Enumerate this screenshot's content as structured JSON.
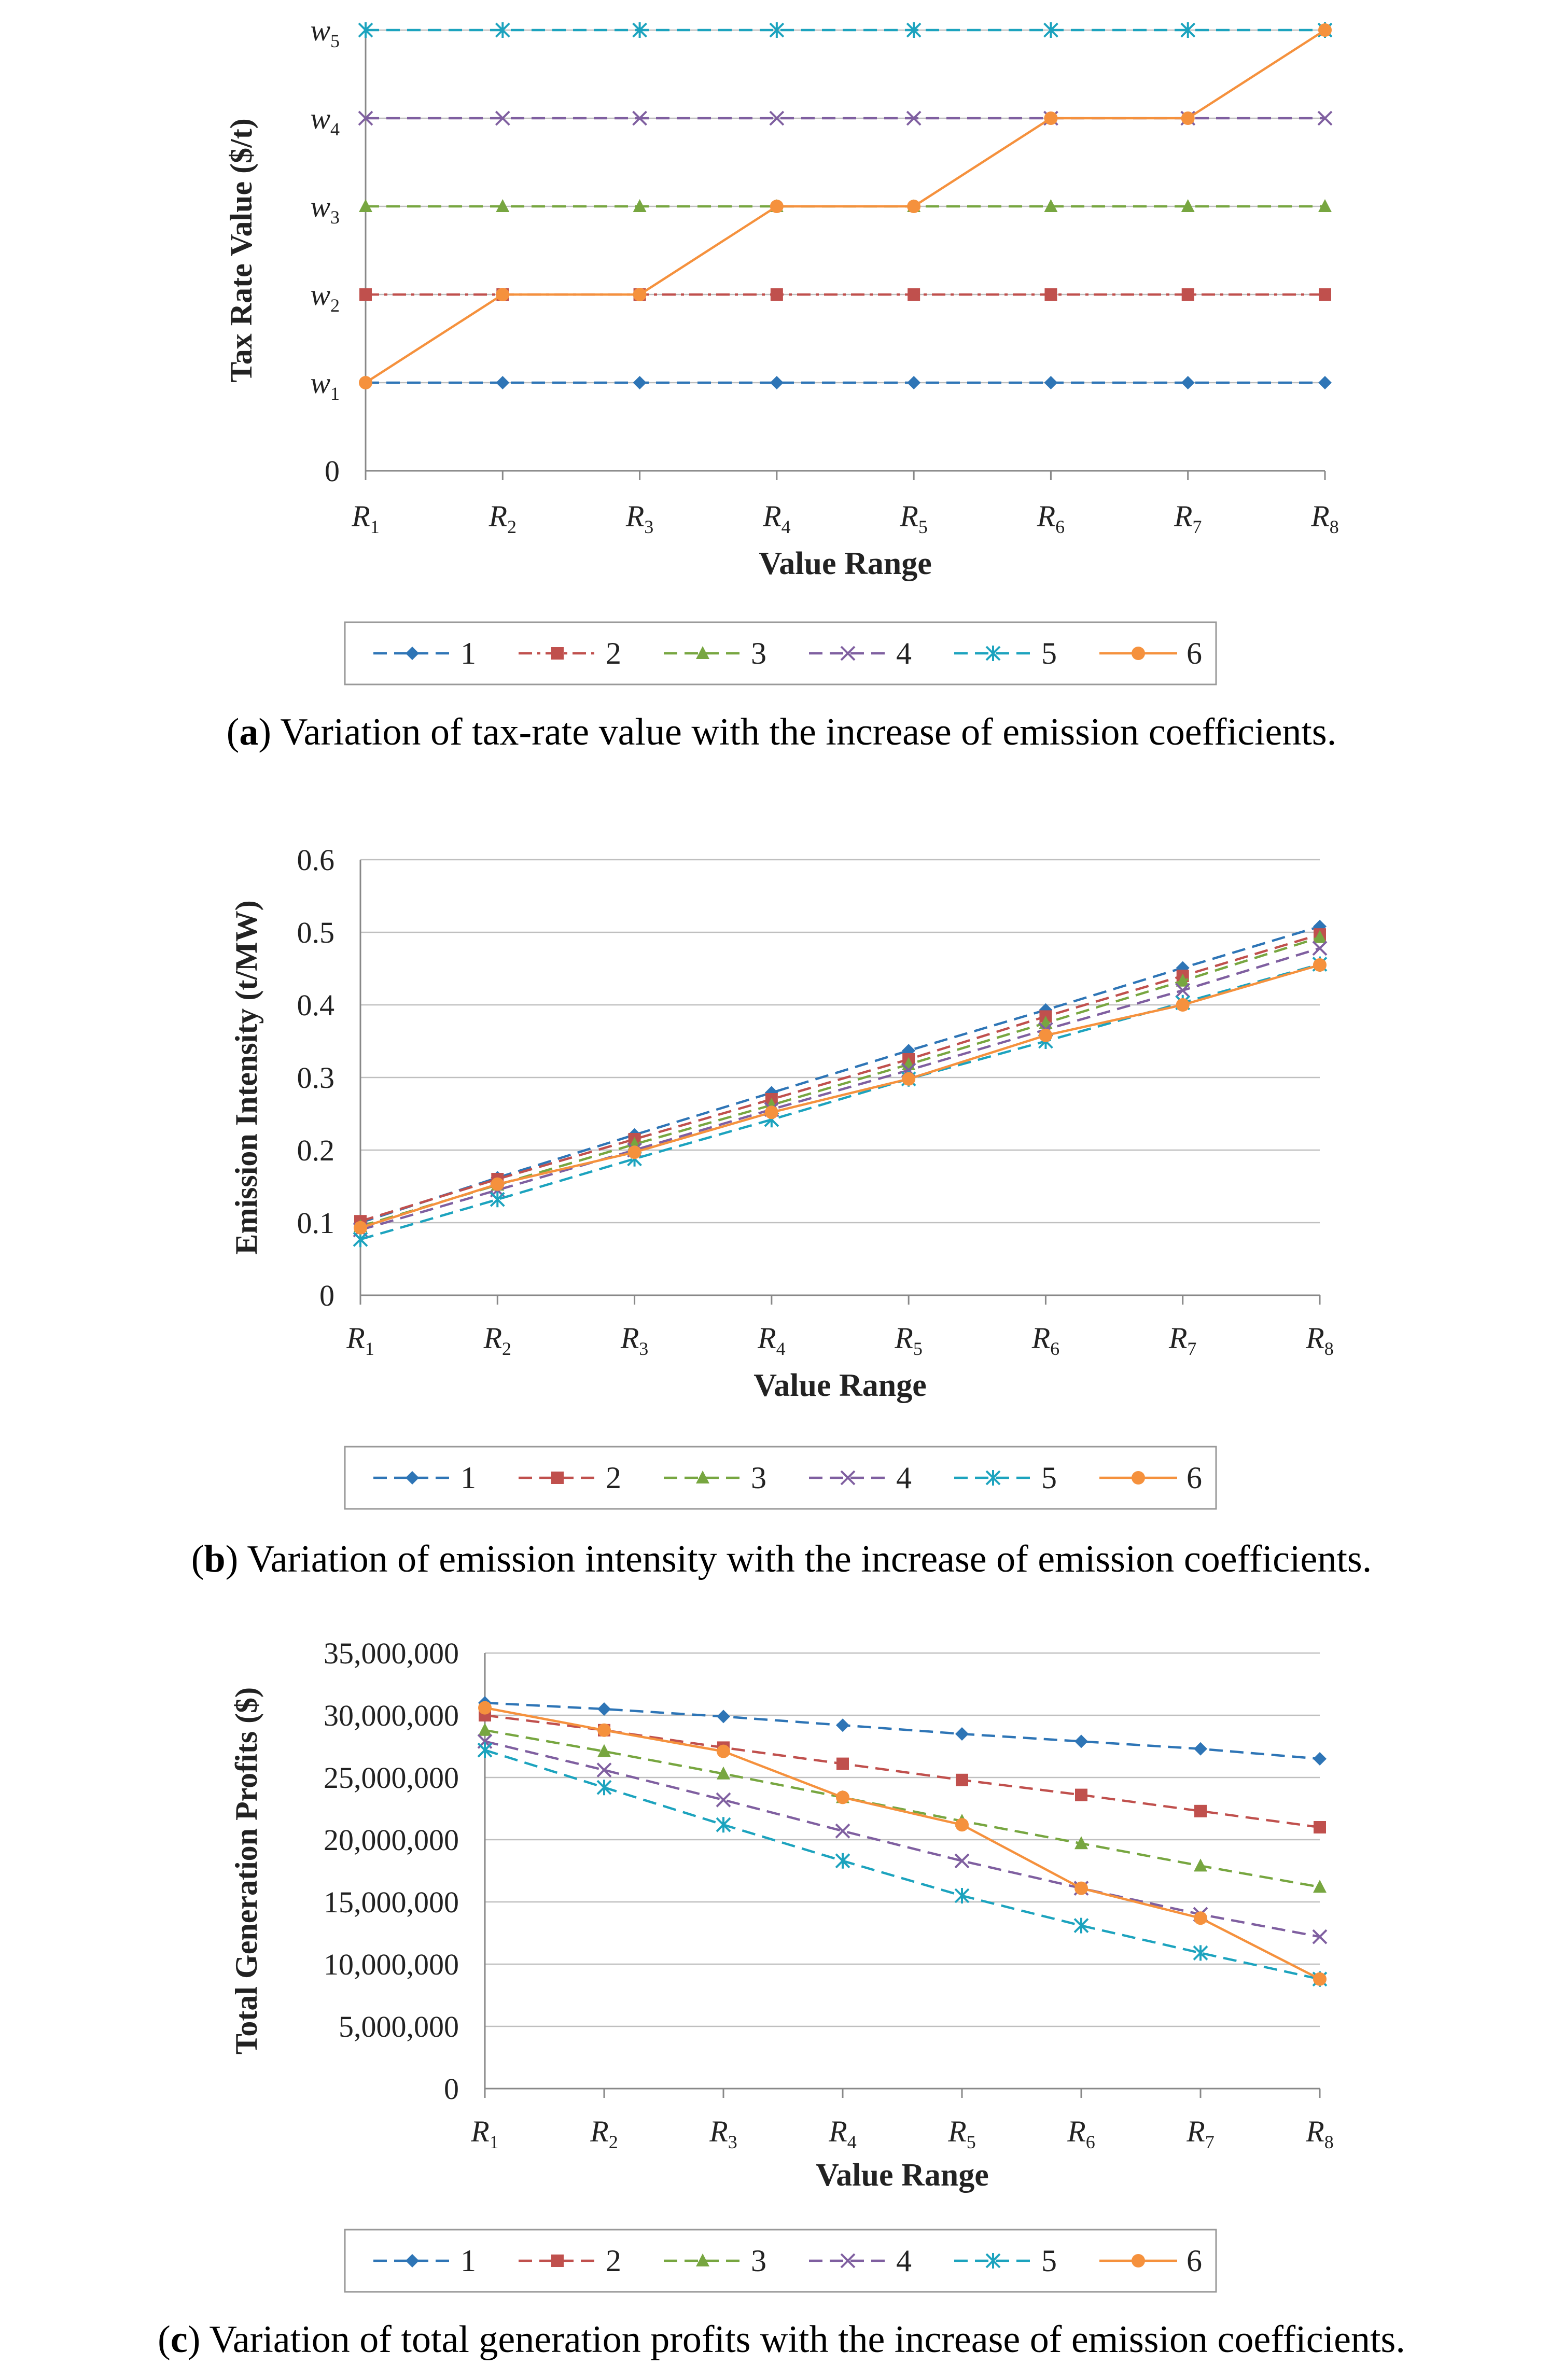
{
  "chart_data": [
    {
      "type": "line",
      "panel": "a",
      "ylabel": "Tax Rate Value ($/t)",
      "xlabel": "Value Range",
      "categories": [
        "R1",
        "R2",
        "R3",
        "R4",
        "R5",
        "R6",
        "R7",
        "R8"
      ],
      "y_ticks": [
        "0",
        "w1",
        "w2",
        "w3",
        "w4",
        "w5"
      ],
      "ylim": [
        0,
        5
      ],
      "grid": true,
      "legend": "bottom",
      "series": [
        {
          "name": "1",
          "color": "#2E75B6",
          "marker": "diamond",
          "dash": "dash",
          "values": [
            1,
            1,
            1,
            1,
            1,
            1,
            1,
            1
          ]
        },
        {
          "name": "2",
          "color": "#C0504D",
          "marker": "square",
          "dash": "dashdot",
          "values": [
            2,
            2,
            2,
            2,
            2,
            2,
            2,
            2
          ]
        },
        {
          "name": "3",
          "color": "#77A640",
          "marker": "triangle",
          "dash": "dash",
          "values": [
            3,
            3,
            3,
            3,
            3,
            3,
            3,
            3
          ]
        },
        {
          "name": "4",
          "color": "#7F5FA0",
          "marker": "x",
          "dash": "dash",
          "values": [
            4,
            4,
            4,
            4,
            4,
            4,
            4,
            4
          ]
        },
        {
          "name": "5",
          "color": "#1CA3BE",
          "marker": "star",
          "dash": "dash",
          "values": [
            5,
            5,
            5,
            5,
            5,
            5,
            5,
            5
          ]
        },
        {
          "name": "6",
          "color": "#F5913D",
          "marker": "circle",
          "dash": "solid",
          "values": [
            1,
            2,
            2,
            3,
            3,
            4,
            4,
            5
          ]
        }
      ]
    },
    {
      "type": "line",
      "panel": "b",
      "ylabel": "Emission Intensity (t/MW)",
      "xlabel": "Value Range",
      "categories": [
        "R1",
        "R2",
        "R3",
        "R4",
        "R5",
        "R6",
        "R7",
        "R8"
      ],
      "y_ticks": [
        "0",
        "0.1",
        "0.2",
        "0.3",
        "0.4",
        "0.5",
        "0.6"
      ],
      "ylim": [
        0,
        0.6
      ],
      "grid": true,
      "legend": "bottom",
      "series": [
        {
          "name": "1",
          "color": "#2E75B6",
          "marker": "diamond",
          "dash": "dash",
          "values": [
            0.1,
            0.162,
            0.221,
            0.279,
            0.337,
            0.393,
            0.451,
            0.508
          ]
        },
        {
          "name": "2",
          "color": "#C0504D",
          "marker": "square",
          "dash": "dash",
          "values": [
            0.102,
            0.16,
            0.215,
            0.27,
            0.325,
            0.384,
            0.44,
            0.497
          ]
        },
        {
          "name": "3",
          "color": "#77A640",
          "marker": "triangle",
          "dash": "dash",
          "values": [
            0.095,
            0.152,
            0.208,
            0.262,
            0.318,
            0.375,
            0.433,
            0.493
          ]
        },
        {
          "name": "4",
          "color": "#7F5FA0",
          "marker": "x",
          "dash": "dash",
          "values": [
            0.09,
            0.145,
            0.2,
            0.256,
            0.31,
            0.366,
            0.42,
            0.478
          ]
        },
        {
          "name": "5",
          "color": "#1CA3BE",
          "marker": "star",
          "dash": "dash",
          "values": [
            0.077,
            0.132,
            0.188,
            0.242,
            0.298,
            0.35,
            0.403,
            0.456
          ]
        },
        {
          "name": "6",
          "color": "#F5913D",
          "marker": "circle",
          "dash": "solid",
          "values": [
            0.093,
            0.153,
            0.197,
            0.252,
            0.298,
            0.358,
            0.4,
            0.455
          ]
        }
      ]
    },
    {
      "type": "line",
      "panel": "c",
      "ylabel": "Total Generation Profits ($)",
      "xlabel": "Value Range",
      "categories": [
        "R1",
        "R2",
        "R3",
        "R4",
        "R5",
        "R6",
        "R7",
        "R8"
      ],
      "y_ticks": [
        "0",
        "5,000,000",
        "10,000,000",
        "15,000,000",
        "20,000,000",
        "25,000,000",
        "30,000,000",
        "35,000,000"
      ],
      "ylim": [
        0,
        35000000
      ],
      "grid": true,
      "legend": "bottom",
      "series": [
        {
          "name": "1",
          "color": "#2E75B6",
          "marker": "diamond",
          "dash": "dash",
          "values": [
            31000000,
            30500000,
            29900000,
            29200000,
            28500000,
            27900000,
            27300000,
            26500000
          ]
        },
        {
          "name": "2",
          "color": "#C0504D",
          "marker": "square",
          "dash": "dash",
          "values": [
            30000000,
            28800000,
            27400000,
            26100000,
            24800000,
            23600000,
            22300000,
            21000000
          ]
        },
        {
          "name": "3",
          "color": "#77A640",
          "marker": "triangle",
          "dash": "dash",
          "values": [
            28800000,
            27100000,
            25300000,
            23400000,
            21500000,
            19700000,
            17900000,
            16200000
          ]
        },
        {
          "name": "4",
          "color": "#7F5FA0",
          "marker": "x",
          "dash": "dash",
          "values": [
            27900000,
            25600000,
            23200000,
            20700000,
            18300000,
            16100000,
            14000000,
            12200000
          ]
        },
        {
          "name": "5",
          "color": "#1CA3BE",
          "marker": "star",
          "dash": "dash",
          "values": [
            27200000,
            24200000,
            21200000,
            18300000,
            15500000,
            13100000,
            10900000,
            8800000
          ]
        },
        {
          "name": "6",
          "color": "#F5913D",
          "marker": "circle",
          "dash": "solid",
          "values": [
            30600000,
            28800000,
            27100000,
            23400000,
            21200000,
            16100000,
            13700000,
            8800000
          ]
        }
      ]
    }
  ],
  "captions": [
    {
      "label": "a",
      "text": " Variation of tax-rate value with the increase of emission coefficients."
    },
    {
      "label": "b",
      "text": " Variation of emission intensity with the increase of emission coefficients."
    },
    {
      "label": "c",
      "text": " Variation of total generation profits with the increase of emission coefficients."
    }
  ]
}
